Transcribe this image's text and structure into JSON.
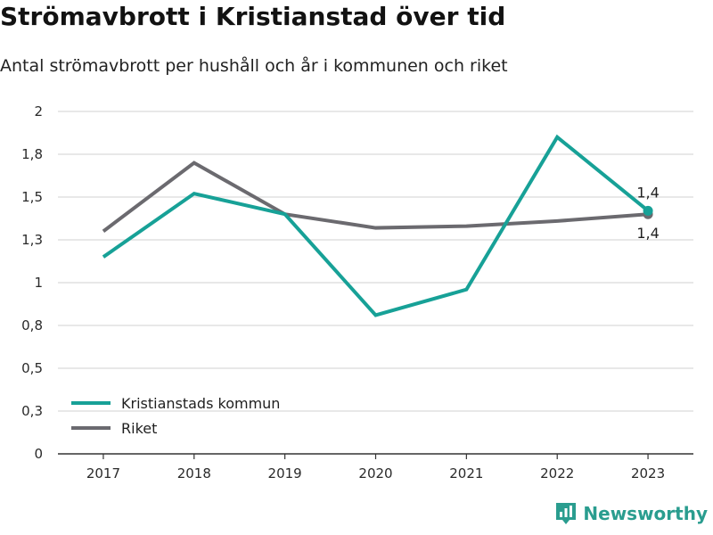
{
  "header": {
    "title": "Strömavbrott i Kristianstad över tid",
    "subtitle": "Antal strömavbrott per hushåll och år i kommunen och riket"
  },
  "brand": {
    "name": "Newsworthy",
    "icon": "newsworthy-logo-icon",
    "color": "#2a9d8f"
  },
  "colors": {
    "kristianstad": "#17a197",
    "riket": "#6b6a6f",
    "grid": "#d9d9d9",
    "axis": "#333333"
  },
  "chart_data": {
    "type": "line",
    "x": [
      "2017",
      "2018",
      "2019",
      "2020",
      "2021",
      "2022",
      "2023"
    ],
    "series": [
      {
        "name": "Kristianstads kommun",
        "values": [
          1.15,
          1.52,
          1.4,
          0.81,
          0.96,
          1.85,
          1.42
        ]
      },
      {
        "name": "Riket",
        "values": [
          1.3,
          1.7,
          1.4,
          1.32,
          1.33,
          1.36,
          1.4
        ]
      }
    ],
    "yticks": [
      0,
      0.25,
      0.5,
      0.75,
      1,
      1.25,
      1.5,
      1.75,
      2
    ],
    "ytick_labels": [
      "0",
      "0,3",
      "0,5",
      "0,8",
      "1",
      "1,3",
      "1,5",
      "1,8",
      "2"
    ],
    "ylim": [
      0,
      2
    ],
    "end_labels": [
      "1,4",
      "1,4"
    ],
    "legend": {
      "position": "bottom-left"
    },
    "grid": true
  }
}
